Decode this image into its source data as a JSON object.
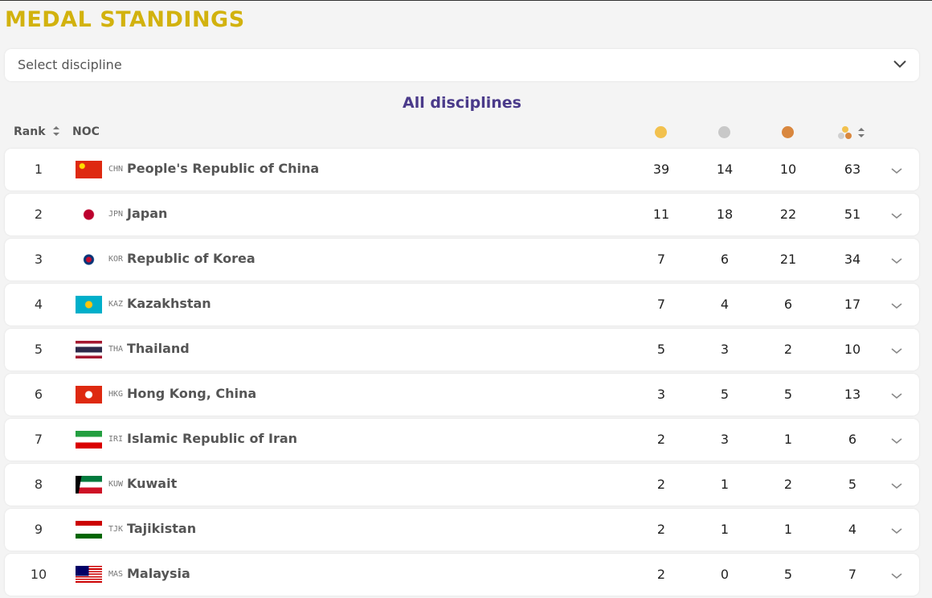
{
  "header": {
    "title": "MEDAL STANDINGS"
  },
  "filter": {
    "placeholder": "Select discipline"
  },
  "table": {
    "subtitle": "All disciplines",
    "columns": {
      "rank": "Rank",
      "noc": "NOC"
    },
    "rows": [
      {
        "rank": 1,
        "code": "CHN",
        "noc": "People's Republic of China",
        "gold": 39,
        "silver": 14,
        "bronze": 10,
        "total": 63
      },
      {
        "rank": 2,
        "code": "JPN",
        "noc": "Japan",
        "gold": 11,
        "silver": 18,
        "bronze": 22,
        "total": 51
      },
      {
        "rank": 3,
        "code": "KOR",
        "noc": "Republic of Korea",
        "gold": 7,
        "silver": 6,
        "bronze": 21,
        "total": 34
      },
      {
        "rank": 4,
        "code": "KAZ",
        "noc": "Kazakhstan",
        "gold": 7,
        "silver": 4,
        "bronze": 6,
        "total": 17
      },
      {
        "rank": 5,
        "code": "THA",
        "noc": "Thailand",
        "gold": 5,
        "silver": 3,
        "bronze": 2,
        "total": 10
      },
      {
        "rank": 6,
        "code": "HKG",
        "noc": "Hong Kong, China",
        "gold": 3,
        "silver": 5,
        "bronze": 5,
        "total": 13
      },
      {
        "rank": 7,
        "code": "IRI",
        "noc": "Islamic Republic of Iran",
        "gold": 2,
        "silver": 3,
        "bronze": 1,
        "total": 6
      },
      {
        "rank": 8,
        "code": "KUW",
        "noc": "Kuwait",
        "gold": 2,
        "silver": 1,
        "bronze": 2,
        "total": 5
      },
      {
        "rank": 9,
        "code": "TJK",
        "noc": "Tajikistan",
        "gold": 2,
        "silver": 1,
        "bronze": 1,
        "total": 4
      },
      {
        "rank": 10,
        "code": "MAS",
        "noc": "Malaysia",
        "gold": 2,
        "silver": 0,
        "bronze": 5,
        "total": 7
      }
    ]
  }
}
